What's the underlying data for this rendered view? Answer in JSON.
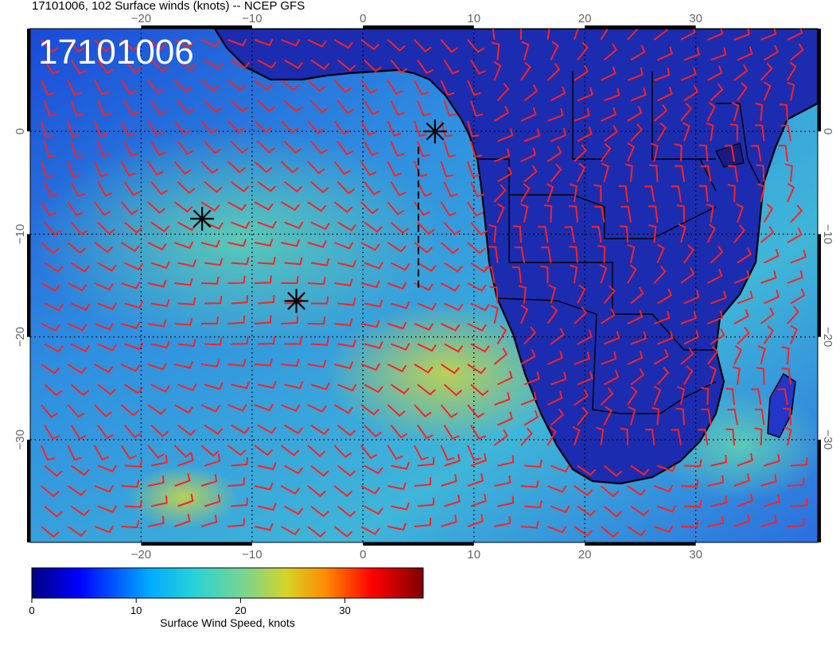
{
  "title": "17101006, 102 Surface winds (knots) -- NCEP GFS",
  "date_stamp": "17101006",
  "map": {
    "lon_labels": [
      "−20",
      "−10",
      "0",
      "10",
      "20",
      "30"
    ],
    "lat_labels": [
      "0",
      "−10",
      "−20",
      "−30"
    ],
    "lon_values": [
      -20,
      -10,
      0,
      10,
      20,
      30
    ],
    "lat_values": [
      0,
      -10,
      -20,
      -30
    ],
    "lon_range": [
      -30,
      41
    ],
    "lat_range": [
      -40,
      10
    ],
    "gridlines": "dotted",
    "barb_color": "#ff2020",
    "markers": [
      {
        "lon": 6.5,
        "lat": 0.0
      },
      {
        "lon": -14.5,
        "lat": -8.5
      },
      {
        "lon": -6.0,
        "lat": -16.5
      }
    ],
    "dashed_track": [
      [
        5.0,
        -1.5
      ],
      [
        5.0,
        -15.5
      ]
    ]
  },
  "colorbar": {
    "label": "Surface Wind Speed, knots",
    "tick_labels": [
      "0",
      "10",
      "20",
      "30"
    ],
    "tick_values": [
      0,
      10,
      20,
      30
    ],
    "range": [
      0,
      37.5
    ],
    "colors": [
      "#00007f",
      "#0000ff",
      "#00aaff",
      "#2ad4d4",
      "#7fd48a",
      "#d4d42a",
      "#ff8c00",
      "#ff0000",
      "#7f0000"
    ]
  }
}
